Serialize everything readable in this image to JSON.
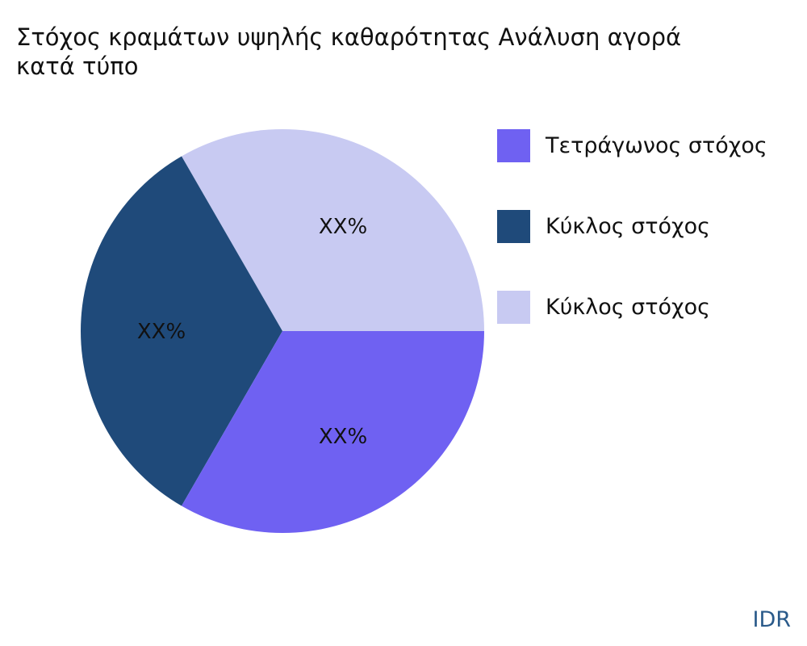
{
  "chart_data": {
    "type": "pie",
    "title_lines": [
      "Στόχος κραμάτων υψηλής καθαρότητας Ανάλυση αγορά",
      "κατά τύπο"
    ],
    "slices": [
      {
        "name": "Τετράγωνος στόχος",
        "value": 33.33,
        "label": "XX%",
        "color": "#6f61f2"
      },
      {
        "name": "Κύκλος στόχος",
        "value": 33.33,
        "label": "XX%",
        "color": "#1f4a7a"
      },
      {
        "name": "Κύκλος στόχος",
        "value": 33.33,
        "label": "XX%",
        "color": "#c8caf2"
      }
    ],
    "legend_position": "right",
    "credit": "IDR"
  }
}
